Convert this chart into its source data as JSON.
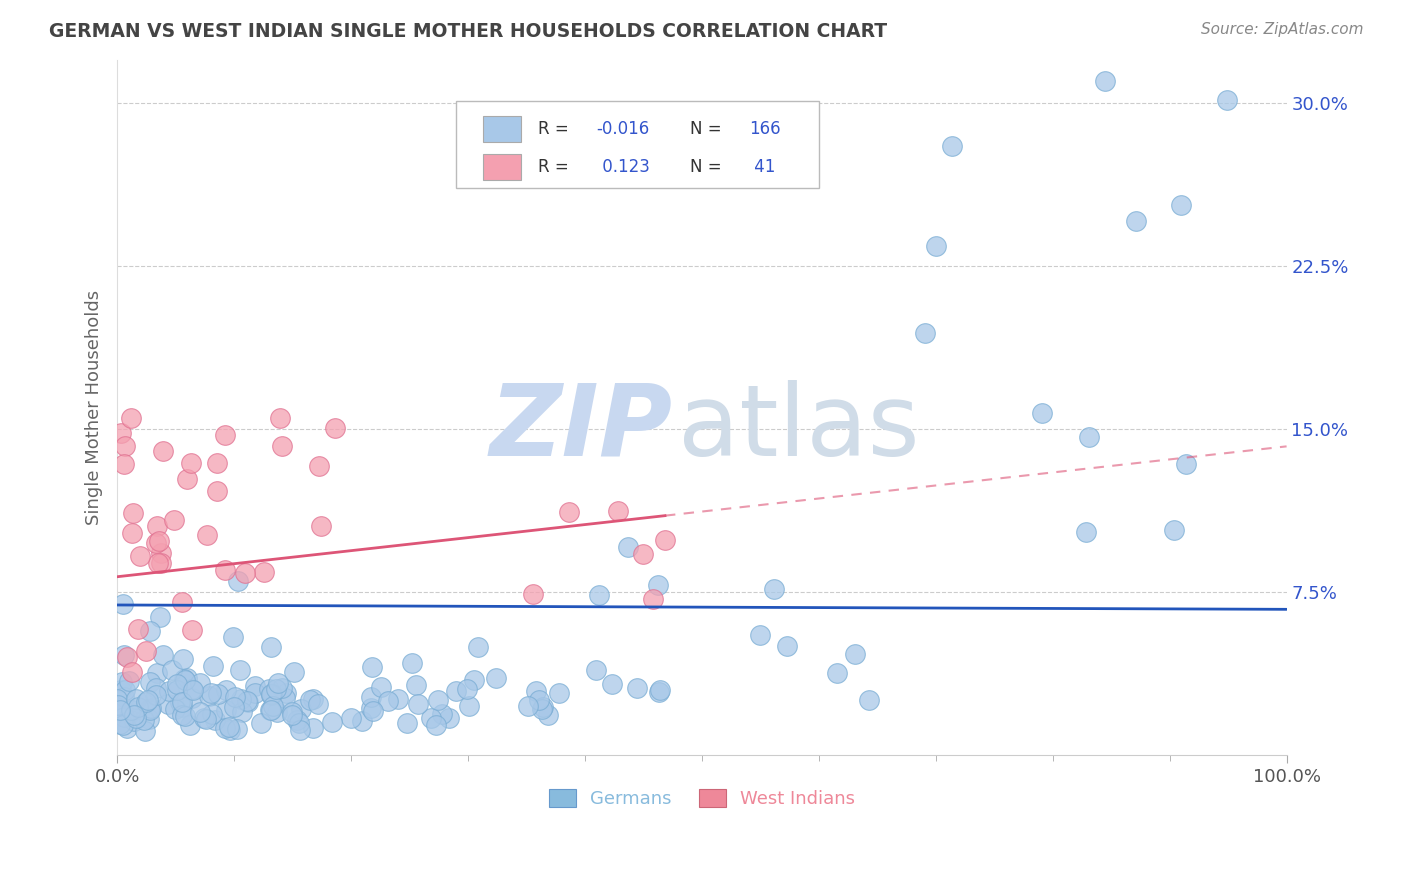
{
  "title": "GERMAN VS WEST INDIAN SINGLE MOTHER HOUSEHOLDS CORRELATION CHART",
  "source": "Source: ZipAtlas.com",
  "ylabel": "Single Mother Households",
  "xlim": [
    0,
    1.0
  ],
  "ylim": [
    0,
    0.32
  ],
  "yticks": [
    0.075,
    0.15,
    0.225,
    0.3
  ],
  "ytick_labels": [
    "7.5%",
    "15.0%",
    "22.5%",
    "30.0%"
  ],
  "xtick_labels": [
    "0.0%",
    "100.0%"
  ],
  "german_color": "#a8c8e8",
  "german_edge_color": "#7aadd4",
  "west_indian_color": "#f4a0b0",
  "west_indian_edge_color": "#e07090",
  "german_line_color": "#2255bb",
  "west_indian_line_color": "#dd5577",
  "R_german": -0.016,
  "R_west_indian": 0.123,
  "N_german": 166,
  "N_west_indian": 41,
  "background_color": "#ffffff",
  "grid_color": "#cccccc",
  "watermark_zip_color": "#c8d8f0",
  "watermark_atlas_color": "#d0dce8",
  "legend_text_color": "#3355cc",
  "legend_label_color": "#333333",
  "bottom_german_color": "#88bbdd",
  "bottom_wi_color": "#ee8899",
  "title_color": "#444444",
  "source_color": "#888888",
  "ytick_color": "#3355cc",
  "xtick_color": "#555555"
}
